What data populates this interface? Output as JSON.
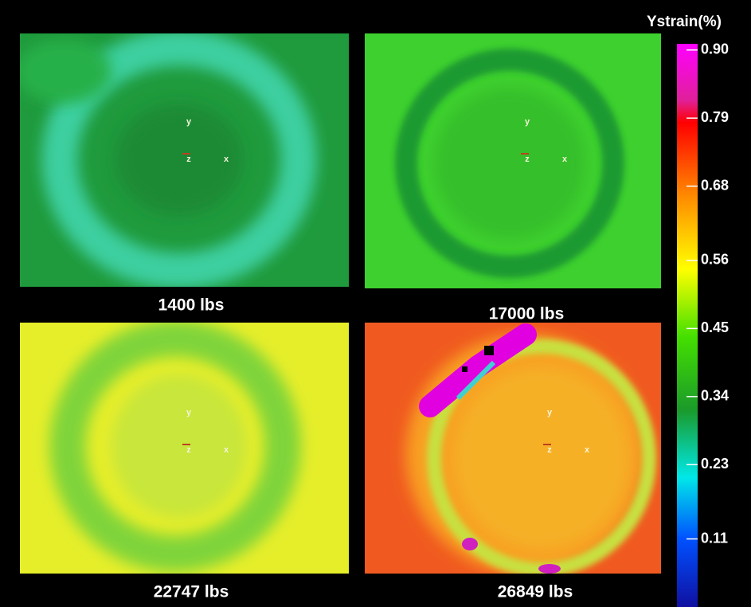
{
  "panels": [
    {
      "label": "1400 lbs"
    },
    {
      "label": "17000 lbs"
    },
    {
      "label": "22747 lbs"
    },
    {
      "label": "26849 lbs"
    }
  ],
  "axis_markers": [
    "y",
    "z",
    "x"
  ],
  "colorbar": {
    "title": "Ystrain(%)",
    "lim": [
      0,
      0.91
    ],
    "ticks": [
      {
        "value": 0.9,
        "label": "0.90"
      },
      0.79,
      0.68,
      0.56,
      0.45,
      0.34,
      0.23,
      0.11
    ]
  }
}
